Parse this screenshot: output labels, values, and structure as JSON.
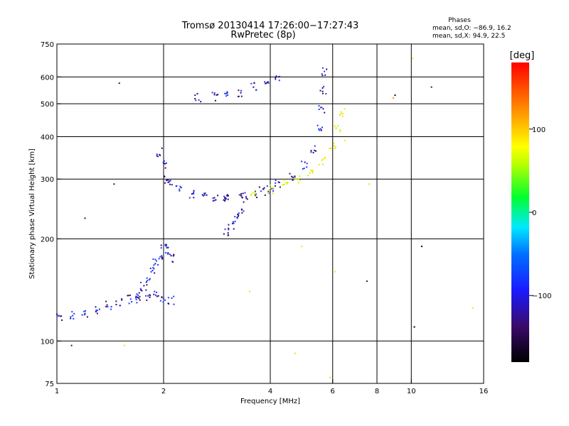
{
  "chart_data": {
    "type": "scatter",
    "title": "Tromsø 20130414 17:26:00−17:27:43",
    "subtitle": "RwPretec (8p)",
    "xlabel": "Frequency [MHz]",
    "ylabel": "Stationary phase Virtual Height [km]",
    "xscale": "log",
    "yscale": "log",
    "xlim": [
      1,
      16
    ],
    "ylim": [
      75,
      750
    ],
    "xticks": [
      1,
      2,
      4,
      6,
      8,
      10,
      16
    ],
    "xtick_labels": [
      "1",
      "2",
      "4",
      "6",
      "8",
      "10",
      "16"
    ],
    "xgrid": [
      2,
      4,
      6,
      8,
      10
    ],
    "yticks": [
      75,
      100,
      200,
      300,
      400,
      500,
      600,
      750
    ],
    "ytick_labels": [
      "75",
      "100",
      "200",
      "300",
      "400",
      "500",
      "600",
      "750"
    ],
    "ygrid": [
      100,
      200,
      300,
      400,
      500,
      600
    ],
    "grid": true,
    "phase_box": {
      "heading": "Phases",
      "line1": "mean, sd,O: −86.9, 16.2",
      "line2": "mean, sd,X:  94.9, 22.5"
    },
    "colorbar": {
      "label": "[deg]",
      "range": [
        -180,
        180
      ],
      "ticks": [
        100,
        0,
        -100
      ],
      "tick_labels": [
        "100",
        "0",
        "−100"
      ],
      "colormap": "rainbow"
    },
    "traces": [
      {
        "name_hint": "low E-trace",
        "x": [
          1.02,
          1.1,
          1.2,
          1.3,
          1.4,
          1.5,
          1.6,
          1.7,
          1.8,
          1.9,
          2.0,
          2.1
        ],
        "y": [
          117,
          119,
          121,
          123,
          127,
          130,
          133,
          132,
          134,
          136,
          133,
          132
        ],
        "phase": -100
      },
      {
        "name_hint": "E2 vertical",
        "x": [
          1.7,
          1.75,
          1.8,
          1.85,
          1.9,
          1.95,
          2.0,
          2.05,
          2.1
        ],
        "y": [
          135,
          145,
          150,
          160,
          170,
          180,
          190,
          185,
          175
        ],
        "phase": -100
      },
      {
        "name_hint": "F1 cusp",
        "x": [
          1.95,
          2.0,
          2.05,
          2.1,
          2.2,
          2.4,
          2.6,
          2.8,
          3.0,
          3.3,
          3.6,
          4.0
        ],
        "y": [
          360,
          330,
          300,
          290,
          280,
          272,
          268,
          266,
          265,
          264,
          268,
          280
        ],
        "phase": -100
      },
      {
        "name_hint": "F2 O-trace",
        "x": [
          3.0,
          3.4,
          3.8,
          4.2,
          4.6,
          5.0,
          5.3,
          5.5,
          5.6,
          5.65,
          5.7
        ],
        "y": [
          262,
          268,
          276,
          290,
          305,
          330,
          370,
          420,
          480,
          550,
          620
        ],
        "phase": -100
      },
      {
        "name_hint": "F2 X-trace",
        "x": [
          3.6,
          4.0,
          4.4,
          4.8,
          5.2,
          5.6,
          6.0,
          6.2,
          6.4
        ],
        "y": [
          275,
          280,
          290,
          300,
          315,
          340,
          380,
          420,
          470
        ],
        "phase": 100
      },
      {
        "name_hint": "spread F",
        "x": [
          3.0,
          3.1,
          3.2,
          3.3
        ],
        "y": [
          210,
          220,
          230,
          240
        ],
        "phase": -100
      },
      {
        "name_hint": "upper echoes",
        "x": [
          2.5,
          2.8,
          3.0,
          3.3,
          3.6,
          3.9,
          4.2
        ],
        "y": [
          520,
          525,
          530,
          540,
          560,
          580,
          600
        ],
        "phase": -100
      }
    ],
    "outliers": [
      {
        "x": 1.5,
        "y": 575,
        "phase": -100
      },
      {
        "x": 1.2,
        "y": 230,
        "phase": -100
      },
      {
        "x": 1.45,
        "y": 290,
        "phase": -100
      },
      {
        "x": 1.1,
        "y": 97,
        "phase": -100
      },
      {
        "x": 1.55,
        "y": 97,
        "phase": 100
      },
      {
        "x": 3.5,
        "y": 140,
        "phase": 140
      },
      {
        "x": 4.7,
        "y": 92,
        "phase": 100
      },
      {
        "x": 5.9,
        "y": 78,
        "phase": 100
      },
      {
        "x": 8.9,
        "y": 520,
        "phase": 150
      },
      {
        "x": 9.0,
        "y": 530,
        "phase": -140
      },
      {
        "x": 10.1,
        "y": 680,
        "phase": 140
      },
      {
        "x": 11.4,
        "y": 560,
        "phase": -100
      },
      {
        "x": 10.7,
        "y": 190,
        "phase": -140
      },
      {
        "x": 10.2,
        "y": 110,
        "phase": -140
      },
      {
        "x": 14.9,
        "y": 125,
        "phase": 120
      },
      {
        "x": 7.5,
        "y": 150,
        "phase": -100
      },
      {
        "x": 7.6,
        "y": 290,
        "phase": 100
      },
      {
        "x": 6.1,
        "y": 160,
        "phase": 120
      },
      {
        "x": 4.9,
        "y": 190,
        "phase": 140
      },
      {
        "x": 6.5,
        "y": 390,
        "phase": 120
      }
    ]
  }
}
